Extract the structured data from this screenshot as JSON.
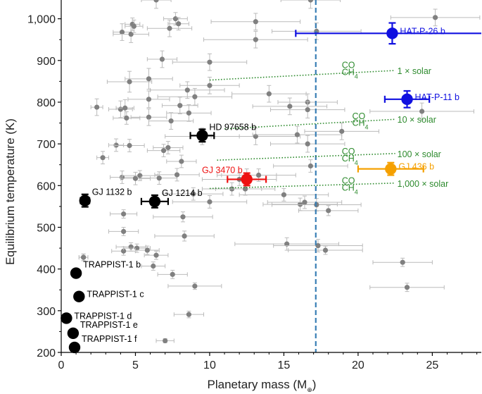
{
  "chart_data": {
    "type": "scatter",
    "xlabel": "Planetary mass (M",
    "xlabel_sub": "⊕",
    "xlabel_close": ")",
    "ylabel": "Equilibrium temperature (K)",
    "xlim": [
      0,
      28.3
    ],
    "ylim": [
      200,
      1045
    ],
    "x_ticks": [
      0,
      5,
      10,
      15,
      20,
      25
    ],
    "x_tick_labels": [
      "0",
      "5",
      "10",
      "15",
      "20",
      "25"
    ],
    "y_ticks": [
      200,
      300,
      400,
      500,
      600,
      700,
      800,
      900,
      1000
    ],
    "y_tick_labels": [
      "200",
      "300",
      "400",
      "500",
      "600",
      "700",
      "800",
      "900",
      "1,000"
    ],
    "vertical_line_x": 17.15,
    "colors": {
      "background_points": "#808080",
      "background_errorbars": "#bbbbbb",
      "black": "#000000",
      "red": "#ee1111",
      "orange": "#f5a000",
      "blue": "#1010e0",
      "green": "#2e8b2e",
      "dashed_line": "#3a7fb5"
    },
    "background_points": [
      {
        "x": 1.5,
        "y": 428,
        "xerr": 0.3,
        "yerr": 8
      },
      {
        "x": 1.5,
        "y": 428,
        "xerr": 0.3,
        "yerr": 8
      },
      {
        "x": 2.4,
        "y": 788,
        "xerr": 0.4,
        "yerr": 20
      },
      {
        "x": 2.8,
        "y": 667,
        "xerr": 0.4,
        "yerr": 15
      },
      {
        "x": 3.7,
        "y": 697,
        "xerr": 0.5,
        "yerr": 15
      },
      {
        "x": 4.0,
        "y": 783,
        "xerr": 0.8,
        "yerr": 20
      },
      {
        "x": 4.1,
        "y": 620,
        "xerr": 0.8,
        "yerr": 15
      },
      {
        "x": 4.1,
        "y": 968,
        "xerr": 0.6,
        "yerr": 20
      },
      {
        "x": 4.2,
        "y": 532,
        "xerr": 0.9,
        "yerr": 10
      },
      {
        "x": 4.2,
        "y": 490,
        "xerr": 1.0,
        "yerr": 10
      },
      {
        "x": 4.2,
        "y": 443,
        "xerr": 0.8,
        "yerr": 10
      },
      {
        "x": 4.3,
        "y": 786,
        "xerr": 0.6,
        "yerr": 20
      },
      {
        "x": 4.4,
        "y": 762,
        "xerr": 0.9,
        "yerr": 15
      },
      {
        "x": 4.6,
        "y": 849,
        "xerr": 1.5,
        "yerr": 25
      },
      {
        "x": 4.6,
        "y": 696,
        "xerr": 1.0,
        "yerr": 15
      },
      {
        "x": 4.7,
        "y": 963,
        "xerr": 1.2,
        "yerr": 20
      },
      {
        "x": 4.7,
        "y": 453,
        "xerr": 1.0,
        "yerr": 10
      },
      {
        "x": 4.8,
        "y": 987,
        "xerr": 0.5,
        "yerr": 15
      },
      {
        "x": 4.9,
        "y": 982,
        "xerr": 0.6,
        "yerr": 15
      },
      {
        "x": 5.0,
        "y": 617,
        "xerr": 1.0,
        "yerr": 15
      },
      {
        "x": 5.3,
        "y": 624,
        "xerr": 1.2,
        "yerr": 12
      },
      {
        "x": 5.1,
        "y": 450,
        "xerr": 0.9,
        "yerr": 10
      },
      {
        "x": 5.8,
        "y": 445,
        "xerr": 0.8,
        "yerr": 10
      },
      {
        "x": 5.9,
        "y": 856,
        "xerr": 1.6,
        "yerr": 25
      },
      {
        "x": 5.9,
        "y": 807,
        "xerr": 1.4,
        "yerr": 20
      },
      {
        "x": 5.9,
        "y": 764,
        "xerr": 1.2,
        "yerr": 20
      },
      {
        "x": 6.2,
        "y": 407,
        "xerr": 0.8,
        "yerr": 10
      },
      {
        "x": 6.4,
        "y": 433,
        "xerr": 0.8,
        "yerr": 10
      },
      {
        "x": 6.4,
        "y": 1045,
        "xerr": 1.0,
        "yerr": 20
      },
      {
        "x": 6.6,
        "y": 618,
        "xerr": 1.2,
        "yerr": 15
      },
      {
        "x": 6.8,
        "y": 903,
        "xerr": 1.0,
        "yerr": 20
      },
      {
        "x": 6.9,
        "y": 684,
        "xerr": 1.1,
        "yerr": 15
      },
      {
        "x": 7.0,
        "y": 228,
        "xerr": 0.6,
        "yerr": 5
      },
      {
        "x": 7.2,
        "y": 691,
        "xerr": 1.0,
        "yerr": 15
      },
      {
        "x": 7.4,
        "y": 755,
        "xerr": 1.5,
        "yerr": 20
      },
      {
        "x": 7.3,
        "y": 977,
        "xerr": 1.5,
        "yerr": 20
      },
      {
        "x": 7.5,
        "y": 387,
        "xerr": 1.0,
        "yerr": 10
      },
      {
        "x": 7.7,
        "y": 1000,
        "xerr": 0.8,
        "yerr": 15
      },
      {
        "x": 7.8,
        "y": 626,
        "xerr": 1.5,
        "yerr": 15
      },
      {
        "x": 7.9,
        "y": 988,
        "xerr": 0.7,
        "yerr": 15
      },
      {
        "x": 8.0,
        "y": 792,
        "xerr": 1.2,
        "yerr": 20
      },
      {
        "x": 8.1,
        "y": 658,
        "xerr": 1.0,
        "yerr": 15
      },
      {
        "x": 8.2,
        "y": 525,
        "xerr": 2.0,
        "yerr": 12
      },
      {
        "x": 8.3,
        "y": 479,
        "xerr": 2.0,
        "yerr": 12
      },
      {
        "x": 8.5,
        "y": 829,
        "xerr": 2.5,
        "yerr": 20
      },
      {
        "x": 8.6,
        "y": 774,
        "xerr": 1.5,
        "yerr": 20
      },
      {
        "x": 8.6,
        "y": 291,
        "xerr": 1.0,
        "yerr": 8
      },
      {
        "x": 8.9,
        "y": 580,
        "xerr": 2.0,
        "yerr": 15
      },
      {
        "x": 9.0,
        "y": 813,
        "xerr": 2.5,
        "yerr": 20
      },
      {
        "x": 9.0,
        "y": 359,
        "xerr": 1.8,
        "yerr": 8
      },
      {
        "x": 9.5,
        "y": 718,
        "xerr": 2.5,
        "yerr": 20
      },
      {
        "x": 10.0,
        "y": 840,
        "xerr": 2.0,
        "yerr": 20
      },
      {
        "x": 10.0,
        "y": 896,
        "xerr": 2.5,
        "yerr": 20
      },
      {
        "x": 10.0,
        "y": 561,
        "xerr": 2.5,
        "yerr": 15
      },
      {
        "x": 11.5,
        "y": 592,
        "xerr": 2.0,
        "yerr": 15
      },
      {
        "x": 12.0,
        "y": 615,
        "xerr": 2.5,
        "yerr": 15
      },
      {
        "x": 12.4,
        "y": 592,
        "xerr": 2.0,
        "yerr": 15
      },
      {
        "x": 12.5,
        "y": 625,
        "xerr": 2.0,
        "yerr": 15
      },
      {
        "x": 13.1,
        "y": 993,
        "xerr": 3.0,
        "yerr": 20
      },
      {
        "x": 13.1,
        "y": 950,
        "xerr": 3.5,
        "yerr": 20
      },
      {
        "x": 13.1,
        "y": 718,
        "xerr": 3.0,
        "yerr": 20
      },
      {
        "x": 13.3,
        "y": 625,
        "xerr": 2.5,
        "yerr": 15
      },
      {
        "x": 14.0,
        "y": 820,
        "xerr": 2.5,
        "yerr": 20
      },
      {
        "x": 15.0,
        "y": 578,
        "xerr": 3.0,
        "yerr": 15
      },
      {
        "x": 15.2,
        "y": 460,
        "xerr": 3.5,
        "yerr": 15
      },
      {
        "x": 15.4,
        "y": 790,
        "xerr": 2.5,
        "yerr": 20
      },
      {
        "x": 15.9,
        "y": 722,
        "xerr": 3.0,
        "yerr": 20
      },
      {
        "x": 16.1,
        "y": 555,
        "xerr": 2.5,
        "yerr": 15
      },
      {
        "x": 16.4,
        "y": 560,
        "xerr": 2.5,
        "yerr": 15
      },
      {
        "x": 16.6,
        "y": 800,
        "xerr": 2.0,
        "yerr": 20
      },
      {
        "x": 16.6,
        "y": 782,
        "xerr": 2.5,
        "yerr": 20
      },
      {
        "x": 16.6,
        "y": 700,
        "xerr": 2.5,
        "yerr": 20
      },
      {
        "x": 16.8,
        "y": 647,
        "xerr": 2.5,
        "yerr": 15
      },
      {
        "x": 16.8,
        "y": 1045,
        "xerr": 2.0,
        "yerr": 20
      },
      {
        "x": 17.2,
        "y": 970,
        "xerr": 3.0,
        "yerr": 20
      },
      {
        "x": 17.2,
        "y": 554,
        "xerr": 3.0,
        "yerr": 15
      },
      {
        "x": 17.3,
        "y": 456,
        "xerr": 3.0,
        "yerr": 15
      },
      {
        "x": 17.8,
        "y": 445,
        "xerr": 2.5,
        "yerr": 10
      },
      {
        "x": 18.0,
        "y": 540,
        "xerr": 2.0,
        "yerr": 12
      },
      {
        "x": 18.9,
        "y": 730,
        "xerr": 2.5,
        "yerr": 20
      },
      {
        "x": 23.0,
        "y": 416,
        "xerr": 2.0,
        "yerr": 10
      },
      {
        "x": 23.3,
        "y": 356,
        "xerr": 2.5,
        "yerr": 10
      },
      {
        "x": 24.3,
        "y": 778,
        "xerr": 3.5,
        "yerr": 20
      },
      {
        "x": 25.2,
        "y": 1003,
        "xerr": 3.0,
        "yerr": 20
      }
    ],
    "highlighted_points": [
      {
        "label": "HAT-P-26 b",
        "x": 22.3,
        "y": 965,
        "xerr": 6.5,
        "yerr": 25,
        "color": "blue",
        "label_pos": "right"
      },
      {
        "label": "HAT-P-11 b",
        "x": 23.3,
        "y": 807,
        "xerr": 1.5,
        "yerr": 20,
        "color": "blue",
        "label_pos": "right"
      },
      {
        "label": "GJ 436 b",
        "x": 22.2,
        "y": 640,
        "xerr": 2.2,
        "yerr": 15,
        "color": "orange",
        "label_pos": "right"
      },
      {
        "label": "GJ 3470 b",
        "x": 12.5,
        "y": 615,
        "xerr": 1.3,
        "yerr": 15,
        "color": "red",
        "label_pos": "left"
      },
      {
        "label": "HD 97658 b",
        "x": 9.5,
        "y": 720,
        "xerr": 0.8,
        "yerr": 15,
        "color": "black",
        "label_pos": "upright"
      },
      {
        "label": "GJ 1214 b",
        "x": 6.3,
        "y": 562,
        "xerr": 0.9,
        "yerr": 15,
        "color": "black",
        "label_pos": "upright"
      },
      {
        "label": "GJ 1132 b",
        "x": 1.6,
        "y": 564,
        "xerr": 0.3,
        "yerr": 15,
        "color": "black",
        "label_pos": "upright"
      },
      {
        "label": "TRAPPIST-1 b",
        "x": 1.0,
        "y": 390,
        "xerr": 0,
        "yerr": 0,
        "color": "black",
        "label_pos": "upright"
      },
      {
        "label": "TRAPPIST-1 c",
        "x": 1.2,
        "y": 334,
        "xerr": 0,
        "yerr": 0,
        "color": "black",
        "label_pos": "right"
      },
      {
        "label": "TRAPPIST-1 d",
        "x": 0.35,
        "y": 282,
        "xerr": 0,
        "yerr": 0,
        "color": "black",
        "label_pos": "right"
      },
      {
        "label": "TRAPPIST-1 e",
        "x": 0.8,
        "y": 246,
        "xerr": 0,
        "yerr": 0,
        "color": "black",
        "label_pos": "upright"
      },
      {
        "label": "TRAPPIST-1 f",
        "x": 0.9,
        "y": 212,
        "xerr": 0,
        "yerr": 0,
        "color": "black",
        "label_pos": "upright"
      }
    ],
    "transition_lines": [
      {
        "label": "1 × solar",
        "x0": 10.0,
        "y0": 853,
        "x1": 22.5,
        "y1": 876,
        "co_x": 18.9,
        "co_y": 890,
        "ch4_y": 865
      },
      {
        "label": "10 × solar",
        "x0": 11.0,
        "y0": 736,
        "x1": 22.5,
        "y1": 759,
        "co_x": 19.6,
        "co_y": 768,
        "ch4_y": 743
      },
      {
        "label": "100 × solar",
        "x0": 10.5,
        "y0": 661,
        "x1": 22.5,
        "y1": 677,
        "co_x": 18.9,
        "co_y": 683,
        "ch4_y": 658
      },
      {
        "label": "1,000 × solar",
        "x0": 10.0,
        "y0": 593,
        "x1": 22.5,
        "y1": 606,
        "co_x": 18.9,
        "co_y": 613,
        "ch4_y": 588
      }
    ],
    "co_label": "CO",
    "ch4_label": "CH",
    "ch4_sub": "4"
  }
}
